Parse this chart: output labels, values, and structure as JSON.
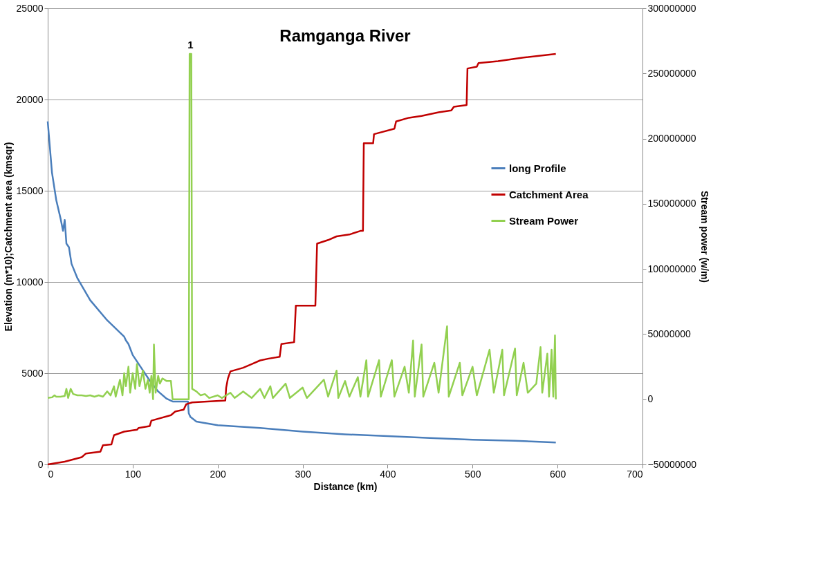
{
  "chart_data": {
    "type": "line",
    "title": "Ramganga River",
    "xlabel": "Distance (km)",
    "ylabel": "Elevation (m*10);Catchment area (kmsqr)",
    "y2label": "Stream power (w/m)",
    "xlim": [
      0,
      700
    ],
    "xticks": [
      0,
      100,
      200,
      300,
      400,
      500,
      600,
      700
    ],
    "ylim": [
      0,
      25000
    ],
    "yticks": [
      0,
      5000,
      10000,
      15000,
      20000,
      25000
    ],
    "y2lim": [
      -50000000,
      300000000
    ],
    "y2ticks": [
      -50000000,
      0,
      50000000,
      100000000,
      150000000,
      200000000,
      250000000,
      300000000
    ],
    "grid": "y",
    "legend": "right",
    "line_style": "solid",
    "marker": "none",
    "annotations": [
      {
        "text": "1",
        "x": 168,
        "y": 22700
      }
    ],
    "series": [
      {
        "name": "long Profile",
        "color": "#4a7ebb",
        "x": [
          0,
          5,
          10,
          15,
          18,
          20,
          22,
          25,
          28,
          35,
          50,
          70,
          90,
          92,
          95,
          100,
          110,
          120,
          130,
          140,
          147,
          165,
          166,
          168,
          175,
          200,
          250,
          300,
          350,
          400,
          450,
          500,
          550,
          598
        ],
        "values": [
          18800,
          16000,
          14500,
          13500,
          12800,
          13400,
          12100,
          11900,
          11000,
          10200,
          9000,
          7900,
          7000,
          6800,
          6600,
          6000,
          5300,
          4600,
          4000,
          3600,
          3450,
          3450,
          2800,
          2600,
          2350,
          2150,
          2000,
          1800,
          1650,
          1550,
          1450,
          1350,
          1300,
          1200
        ]
      },
      {
        "name": "Catchment Area",
        "color": "#c00000",
        "x": [
          0,
          20,
          40,
          45,
          62,
          65,
          75,
          78,
          90,
          105,
          107,
          120,
          122,
          145,
          150,
          160,
          163,
          170,
          209,
          210,
          212,
          215,
          230,
          240,
          250,
          260,
          273,
          275,
          290,
          292,
          315,
          317,
          330,
          340,
          355,
          368,
          371,
          372,
          383,
          384,
          408,
          410,
          425,
          440,
          460,
          475,
          478,
          493,
          494,
          505,
          507,
          530,
          560,
          598
        ],
        "values": [
          0,
          150,
          400,
          600,
          700,
          1050,
          1100,
          1600,
          1800,
          1900,
          2000,
          2100,
          2400,
          2700,
          2900,
          3000,
          3300,
          3400,
          3500,
          4200,
          4700,
          5100,
          5300,
          5500,
          5700,
          5800,
          5900,
          6600,
          6700,
          8700,
          8700,
          12100,
          12300,
          12500,
          12600,
          12800,
          12800,
          17600,
          17600,
          18100,
          18400,
          18800,
          19000,
          19100,
          19300,
          19400,
          19600,
          19700,
          21700,
          21800,
          22000,
          22100,
          22300,
          22500
        ]
      },
      {
        "name": "Stream Power",
        "color": "#92d050",
        "axis": "y2",
        "x": [
          0,
          5,
          8,
          10,
          15,
          20,
          22,
          24,
          27,
          30,
          35,
          40,
          45,
          50,
          55,
          60,
          65,
          70,
          74,
          78,
          80,
          85,
          88,
          90,
          92,
          95,
          97,
          100,
          103,
          105,
          108,
          112,
          115,
          118,
          120,
          122,
          124,
          125,
          127,
          130,
          132,
          135,
          140,
          145,
          147,
          160,
          166,
          167,
          169,
          170,
          175,
          180,
          185,
          190,
          200,
          205,
          215,
          220,
          230,
          240,
          250,
          255,
          262,
          265,
          280,
          285,
          300,
          305,
          325,
          330,
          340,
          342,
          350,
          355,
          365,
          368,
          375,
          377,
          390,
          392,
          405,
          408,
          420,
          425,
          430,
          432,
          440,
          442,
          455,
          460,
          470,
          472,
          485,
          488,
          500,
          505,
          520,
          525,
          535,
          537,
          550,
          552,
          560,
          565,
          575,
          580,
          582,
          588,
          590,
          593,
          595,
          597,
          598
        ],
        "values": [
          1000000,
          1500000,
          3000000,
          2000000,
          2000000,
          2500000,
          8000000,
          1000000,
          8000000,
          4000000,
          3000000,
          3000000,
          2500000,
          3000000,
          2000000,
          3000000,
          2000000,
          6000000,
          3000000,
          10000000,
          2000000,
          15000000,
          3000000,
          20000000,
          10000000,
          25000000,
          5000000,
          20000000,
          8000000,
          27000000,
          10000000,
          22000000,
          8000000,
          15000000,
          5000000,
          18000000,
          0,
          42000000,
          5000000,
          18000000,
          12000000,
          16000000,
          14000000,
          14000000,
          0,
          0,
          0,
          265000000,
          265000000,
          8000000,
          6000000,
          3000000,
          4000000,
          1000000,
          3000000,
          1000000,
          5000000,
          1000000,
          6000000,
          1000000,
          8000000,
          1000000,
          10000000,
          1000000,
          12000000,
          1000000,
          9000000,
          1000000,
          15000000,
          2000000,
          22000000,
          1000000,
          14000000,
          2000000,
          17000000,
          2000000,
          30000000,
          2000000,
          30000000,
          2000000,
          30000000,
          2000000,
          25000000,
          5000000,
          45000000,
          2000000,
          42000000,
          2000000,
          28000000,
          5000000,
          56000000,
          2000000,
          28000000,
          3000000,
          25000000,
          3000000,
          38000000,
          5000000,
          38000000,
          3000000,
          39000000,
          3000000,
          28000000,
          5000000,
          12000000,
          40000000,
          5000000,
          35000000,
          2000000,
          38000000,
          2000000,
          49000000,
          0
        ]
      }
    ]
  }
}
